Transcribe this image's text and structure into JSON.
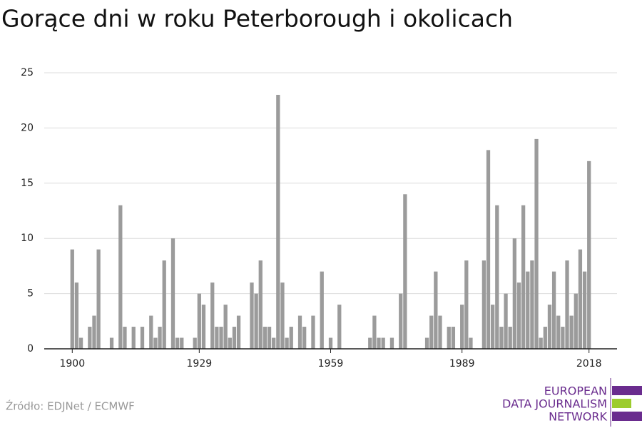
{
  "chart_data": {
    "type": "bar",
    "title": "Gorące dni w roku Peterborough i okolicach",
    "source": "Źródło: EDJNet / ECMWF",
    "logo": [
      "EUROPEAN",
      "DATA JOURNALISM",
      "NETWORK"
    ],
    "x": [
      1900,
      1901,
      1902,
      1903,
      1904,
      1905,
      1906,
      1907,
      1908,
      1909,
      1910,
      1911,
      1912,
      1913,
      1914,
      1915,
      1916,
      1917,
      1918,
      1919,
      1920,
      1921,
      1922,
      1923,
      1924,
      1925,
      1926,
      1927,
      1928,
      1929,
      1930,
      1931,
      1932,
      1933,
      1934,
      1935,
      1936,
      1937,
      1938,
      1939,
      1940,
      1941,
      1942,
      1943,
      1944,
      1945,
      1946,
      1947,
      1948,
      1949,
      1950,
      1951,
      1952,
      1953,
      1954,
      1955,
      1956,
      1957,
      1958,
      1959,
      1960,
      1961,
      1962,
      1963,
      1964,
      1965,
      1966,
      1967,
      1968,
      1969,
      1970,
      1971,
      1972,
      1973,
      1974,
      1975,
      1976,
      1977,
      1978,
      1979,
      1980,
      1981,
      1982,
      1983,
      1984,
      1985,
      1986,
      1987,
      1988,
      1989,
      1990,
      1991,
      1992,
      1993,
      1994,
      1995,
      1996,
      1997,
      1998,
      1999,
      2000,
      2001,
      2002,
      2003,
      2004,
      2005,
      2006,
      2007,
      2008,
      2009,
      2010,
      2011,
      2012,
      2013,
      2014,
      2015,
      2016,
      2017,
      2018
    ],
    "values": [
      9,
      6,
      1,
      0,
      2,
      3,
      9,
      0,
      0,
      1,
      0,
      13,
      2,
      0,
      2,
      0,
      2,
      0,
      3,
      1,
      2,
      8,
      0,
      10,
      1,
      1,
      0,
      0,
      1,
      5,
      4,
      0,
      6,
      2,
      2,
      4,
      1,
      2,
      3,
      0,
      0,
      6,
      5,
      8,
      2,
      2,
      1,
      23,
      6,
      1,
      2,
      0,
      3,
      2,
      0,
      3,
      0,
      7,
      0,
      1,
      0,
      4,
      0,
      0,
      0,
      0,
      0,
      0,
      1,
      3,
      1,
      1,
      0,
      1,
      0,
      5,
      14,
      0,
      0,
      0,
      0,
      1,
      3,
      7,
      3,
      0,
      2,
      2,
      0,
      4,
      8,
      1,
      0,
      0,
      8,
      18,
      4,
      13,
      2,
      5,
      2,
      10,
      6,
      13,
      7,
      8,
      19,
      1,
      2,
      4,
      7,
      3,
      2,
      8,
      3,
      5,
      9,
      7,
      17
    ],
    "color": "#9b9b9b",
    "xlim": [
      1893.6,
      2024.4
    ],
    "xticks": [
      1900,
      1929,
      1959,
      1989,
      2018
    ],
    "ylim": [
      0,
      25
    ],
    "yticks": [
      0,
      5,
      10,
      15,
      20,
      25
    ],
    "grid": true
  }
}
